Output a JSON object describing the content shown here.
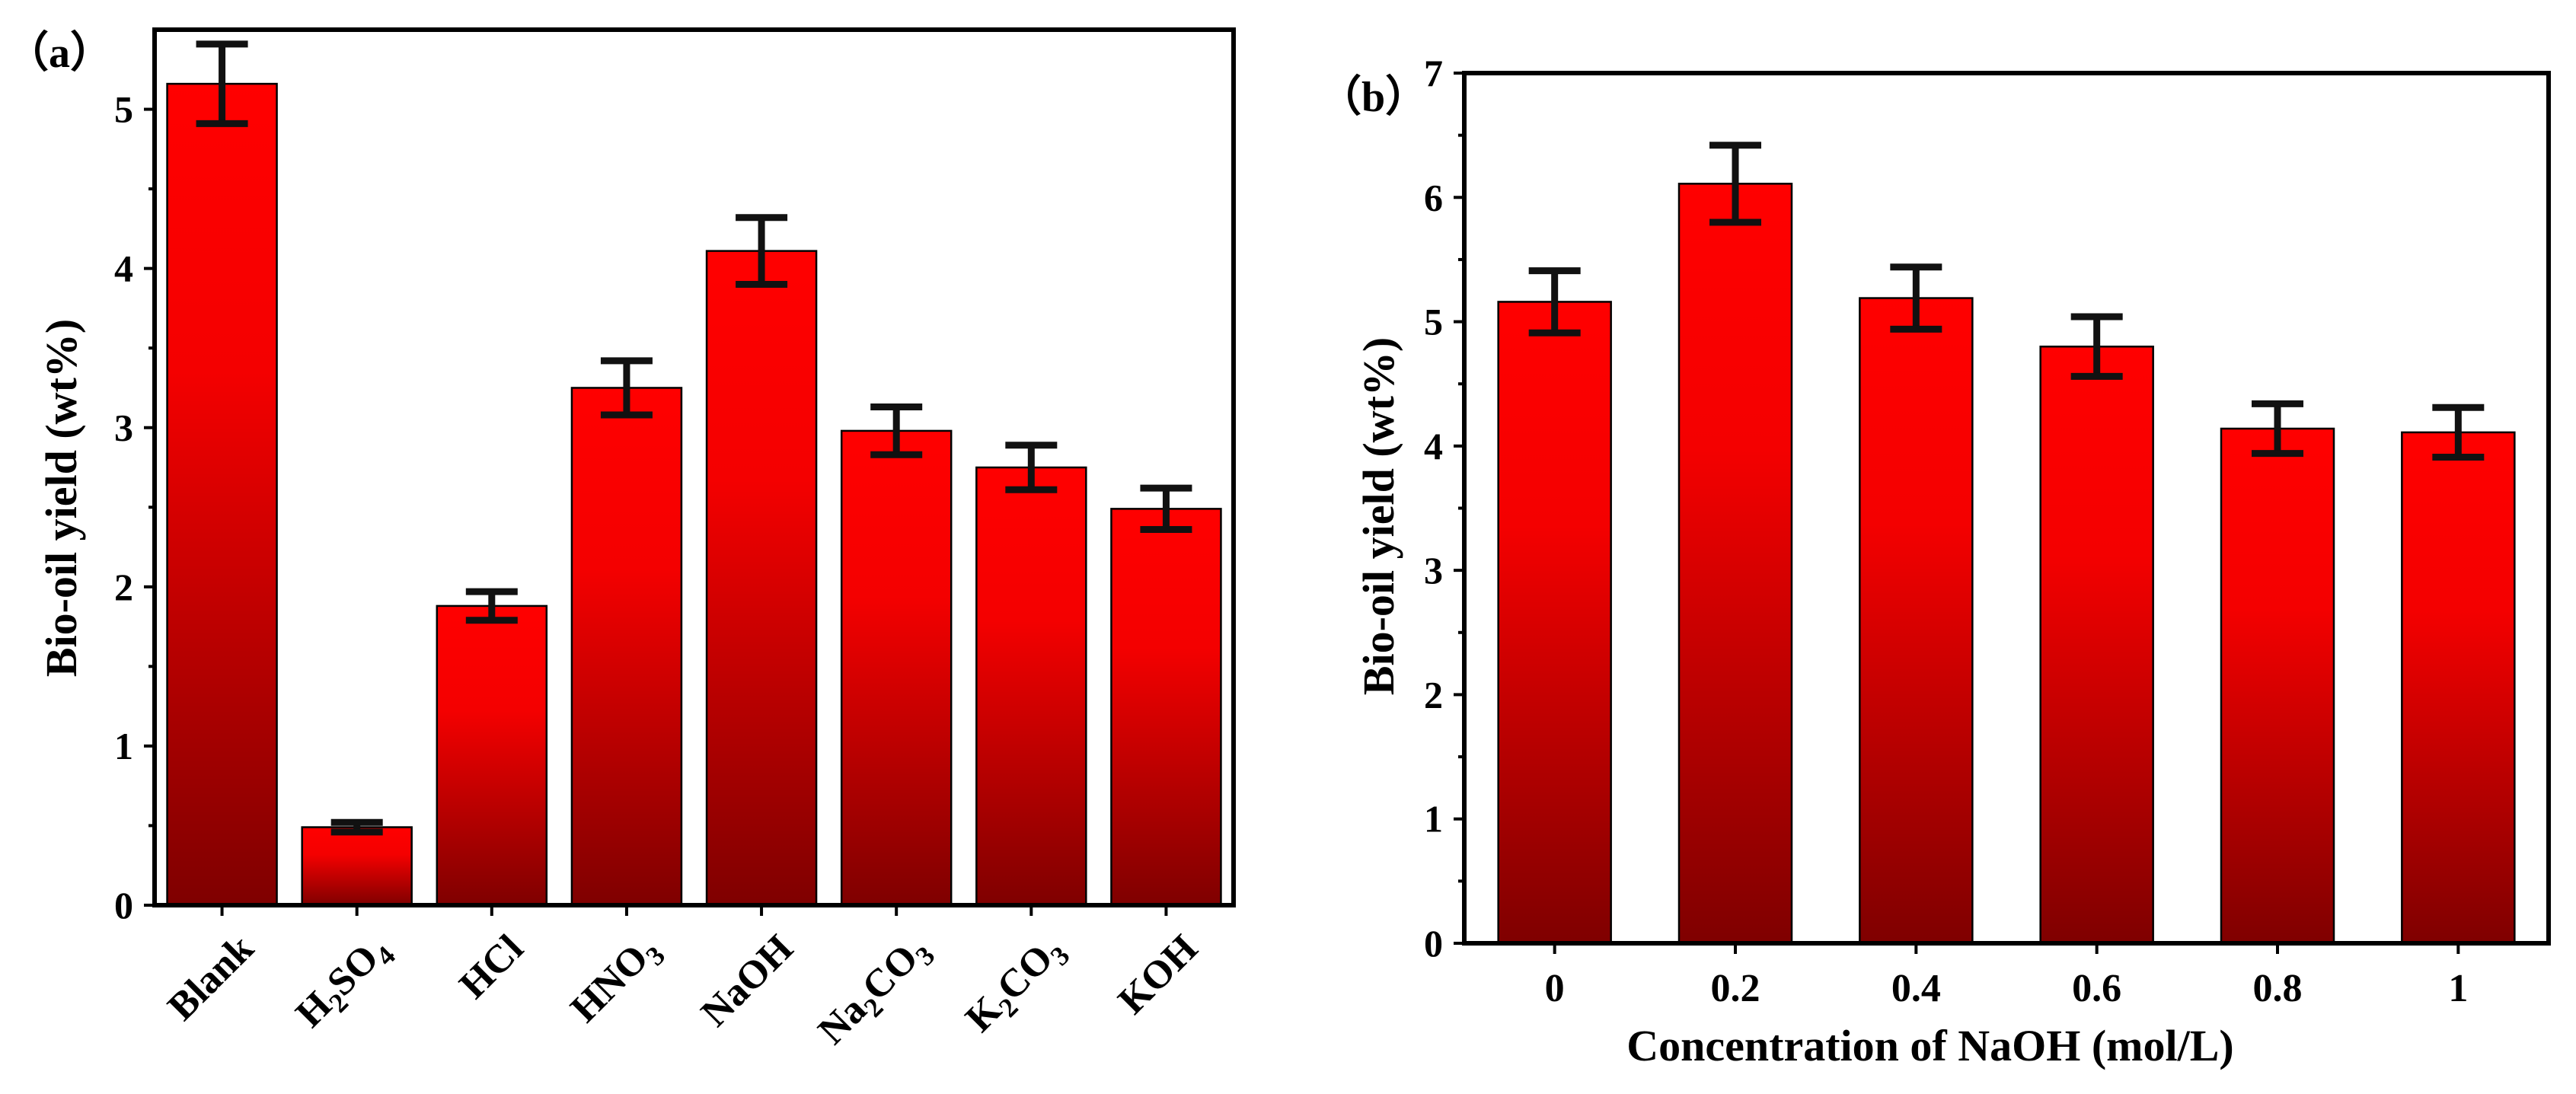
{
  "colors": {
    "bar_top": "#ff0000",
    "bar_bottom": "#7f0000",
    "frame": "#000000",
    "error_bar": "#111111"
  },
  "chart_data": [
    {
      "panel_label": "（a）",
      "type": "bar",
      "title": "",
      "xlabel": "",
      "ylabel": "Bio-oil yield (wt%)",
      "ylim": [
        0,
        5.5
      ],
      "yticks": [
        0,
        1,
        2,
        3,
        4,
        5
      ],
      "grid": false,
      "categories": [
        {
          "name": "Blank",
          "base": "Blank",
          "parts": [
            {
              "t": "Blank"
            }
          ]
        },
        {
          "name": "H2SO4",
          "base": "H2SO4",
          "parts": [
            {
              "t": "H"
            },
            {
              "t": "2",
              "sub": true
            },
            {
              "t": "SO"
            },
            {
              "t": "4",
              "sub": true
            }
          ]
        },
        {
          "name": "HCl",
          "base": "HCl",
          "parts": [
            {
              "t": "HCl"
            }
          ]
        },
        {
          "name": "HNO3",
          "base": "HNO3",
          "parts": [
            {
              "t": "HNO"
            },
            {
              "t": "3",
              "sub": true
            }
          ]
        },
        {
          "name": "NaOH",
          "base": "NaOH",
          "parts": [
            {
              "t": "NaOH"
            }
          ]
        },
        {
          "name": "Na2CO3",
          "base": "Na2CO3",
          "parts": [
            {
              "t": "Na"
            },
            {
              "t": "2",
              "sub": true
            },
            {
              "t": "CO"
            },
            {
              "t": "3",
              "sub": true
            }
          ]
        },
        {
          "name": "K2CO3",
          "base": "K2CO3",
          "parts": [
            {
              "t": "K"
            },
            {
              "t": "2",
              "sub": true
            },
            {
              "t": "CO"
            },
            {
              "t": "3",
              "sub": true
            }
          ]
        },
        {
          "name": "KOH",
          "base": "KOH",
          "parts": [
            {
              "t": "KOH"
            }
          ]
        }
      ],
      "values": [
        5.16,
        0.49,
        1.88,
        3.25,
        4.11,
        2.98,
        2.75,
        2.49
      ],
      "errors": [
        0.25,
        0.03,
        0.09,
        0.17,
        0.21,
        0.15,
        0.14,
        0.13
      ],
      "x_tick_rotation": -45
    },
    {
      "panel_label": "（b）",
      "type": "bar",
      "title": "",
      "xlabel": "Concentration of NaOH (mol/L)",
      "ylabel": "Bio-oil yield (wt%)",
      "ylim": [
        0,
        7
      ],
      "yticks": [
        0,
        1,
        2,
        3,
        4,
        5,
        6,
        7
      ],
      "grid": false,
      "categories": [
        {
          "name": "0",
          "base": "0",
          "parts": [
            {
              "t": "0"
            }
          ]
        },
        {
          "name": "0.2",
          "base": "0.2",
          "parts": [
            {
              "t": "0.2"
            }
          ]
        },
        {
          "name": "0.4",
          "base": "0.4",
          "parts": [
            {
              "t": "0.4"
            }
          ]
        },
        {
          "name": "0.6",
          "base": "0.6",
          "parts": [
            {
              "t": "0.6"
            }
          ]
        },
        {
          "name": "0.8",
          "base": "0.8",
          "parts": [
            {
              "t": "0.8"
            }
          ]
        },
        {
          "name": "1",
          "base": "1",
          "parts": [
            {
              "t": "1"
            }
          ]
        }
      ],
      "values": [
        5.16,
        6.11,
        5.19,
        4.8,
        4.14,
        4.11
      ],
      "errors": [
        0.25,
        0.31,
        0.25,
        0.24,
        0.2,
        0.2
      ],
      "x_tick_rotation": 0
    }
  ]
}
